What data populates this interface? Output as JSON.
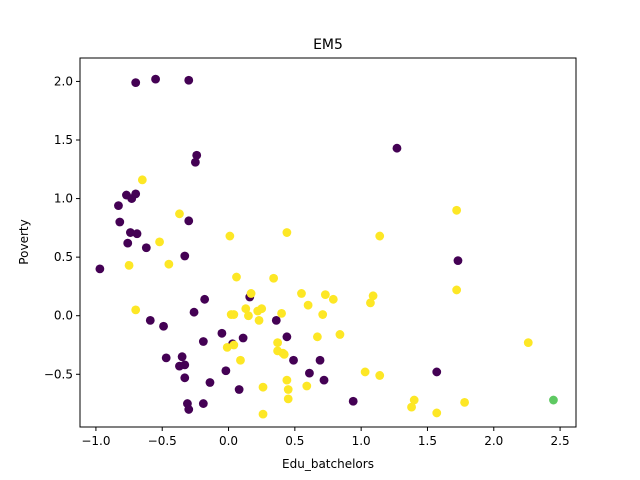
{
  "chart_data": {
    "type": "scatter",
    "title": "EM5",
    "xlabel": "Edu_batchelors",
    "ylabel": "Poverty",
    "xlim": [
      -1.12,
      2.62
    ],
    "ylim": [
      -0.95,
      2.2
    ],
    "x_ticks": [
      -1.0,
      -0.5,
      0.0,
      0.5,
      1.0,
      1.5,
      2.0,
      2.5
    ],
    "x_tick_labels": [
      "−1.0",
      "−0.5",
      "0.0",
      "0.5",
      "1.0",
      "1.5",
      "2.0",
      "2.5"
    ],
    "y_ticks": [
      -0.5,
      0.0,
      0.5,
      1.0,
      1.5,
      2.0
    ],
    "y_tick_labels": [
      "−0.5",
      "0.0",
      "0.5",
      "1.0",
      "1.5",
      "2.0"
    ],
    "grid": false,
    "legend": "none",
    "colors": {
      "cluster0": "#440154",
      "cluster1": "#fde725",
      "cluster2": "#5ec962"
    },
    "series": [
      {
        "color_key": "cluster0",
        "points": [
          [
            -0.7,
            1.99
          ],
          [
            -0.55,
            2.02
          ],
          [
            -0.3,
            2.01
          ],
          [
            1.27,
            1.43
          ],
          [
            -0.24,
            1.37
          ],
          [
            -0.25,
            1.31
          ],
          [
            -0.77,
            1.03
          ],
          [
            -0.7,
            1.04
          ],
          [
            -0.73,
            1.0
          ],
          [
            -0.83,
            0.94
          ],
          [
            -0.3,
            0.81
          ],
          [
            -0.82,
            0.8
          ],
          [
            -0.74,
            0.71
          ],
          [
            -0.69,
            0.7
          ],
          [
            -0.76,
            0.62
          ],
          [
            -0.62,
            0.58
          ],
          [
            -0.33,
            0.51
          ],
          [
            1.73,
            0.47
          ],
          [
            -0.97,
            0.4
          ],
          [
            -0.18,
            0.14
          ],
          [
            -0.26,
            0.03
          ],
          [
            -0.59,
            -0.04
          ],
          [
            0.16,
            0.16
          ],
          [
            0.36,
            -0.04
          ],
          [
            -0.49,
            -0.09
          ],
          [
            -0.05,
            -0.15
          ],
          [
            0.11,
            -0.19
          ],
          [
            -0.19,
            -0.22
          ],
          [
            0.44,
            -0.18
          ],
          [
            0.03,
            -0.24
          ],
          [
            -0.47,
            -0.36
          ],
          [
            -0.35,
            -0.35
          ],
          [
            -0.37,
            -0.43
          ],
          [
            -0.33,
            -0.42
          ],
          [
            0.49,
            -0.38
          ],
          [
            0.69,
            -0.38
          ],
          [
            -0.02,
            -0.47
          ],
          [
            0.61,
            -0.49
          ],
          [
            -0.33,
            -0.53
          ],
          [
            1.57,
            -0.48
          ],
          [
            0.72,
            -0.55
          ],
          [
            -0.14,
            -0.57
          ],
          [
            0.08,
            -0.63
          ],
          [
            -0.31,
            -0.75
          ],
          [
            -0.19,
            -0.75
          ],
          [
            -0.3,
            -0.8
          ],
          [
            0.94,
            -0.73
          ]
        ]
      },
      {
        "color_key": "cluster1",
        "points": [
          [
            -0.65,
            1.16
          ],
          [
            -0.37,
            0.87
          ],
          [
            1.72,
            0.9
          ],
          [
            0.44,
            0.71
          ],
          [
            0.01,
            0.68
          ],
          [
            1.14,
            0.68
          ],
          [
            -0.52,
            0.63
          ],
          [
            -0.45,
            0.44
          ],
          [
            -0.75,
            0.43
          ],
          [
            0.06,
            0.33
          ],
          [
            0.34,
            0.32
          ],
          [
            1.72,
            0.22
          ],
          [
            0.17,
            0.19
          ],
          [
            0.55,
            0.19
          ],
          [
            0.73,
            0.18
          ],
          [
            1.09,
            0.17
          ],
          [
            0.79,
            0.14
          ],
          [
            1.07,
            0.11
          ],
          [
            0.6,
            0.09
          ],
          [
            0.13,
            0.06
          ],
          [
            0.22,
            0.04
          ],
          [
            0.25,
            0.06
          ],
          [
            -0.7,
            0.05
          ],
          [
            0.4,
            0.02
          ],
          [
            0.71,
            0.01
          ],
          [
            0.02,
            0.01
          ],
          [
            0.04,
            0.01
          ],
          [
            0.15,
            0.0
          ],
          [
            0.23,
            -0.04
          ],
          [
            0.84,
            -0.16
          ],
          [
            0.67,
            -0.18
          ],
          [
            2.26,
            -0.23
          ],
          [
            0.37,
            -0.23
          ],
          [
            0.04,
            -0.25
          ],
          [
            -0.01,
            -0.27
          ],
          [
            0.37,
            -0.3
          ],
          [
            0.41,
            -0.32
          ],
          [
            0.42,
            -0.33
          ],
          [
            0.09,
            -0.38
          ],
          [
            1.03,
            -0.48
          ],
          [
            1.14,
            -0.51
          ],
          [
            0.44,
            -0.55
          ],
          [
            0.59,
            -0.6
          ],
          [
            0.26,
            -0.61
          ],
          [
            0.45,
            -0.63
          ],
          [
            0.45,
            -0.71
          ],
          [
            1.4,
            -0.72
          ],
          [
            1.78,
            -0.74
          ],
          [
            1.38,
            -0.78
          ],
          [
            1.57,
            -0.83
          ],
          [
            0.26,
            -0.84
          ]
        ]
      },
      {
        "color_key": "cluster2",
        "points": [
          [
            2.45,
            -0.72
          ]
        ]
      }
    ]
  }
}
